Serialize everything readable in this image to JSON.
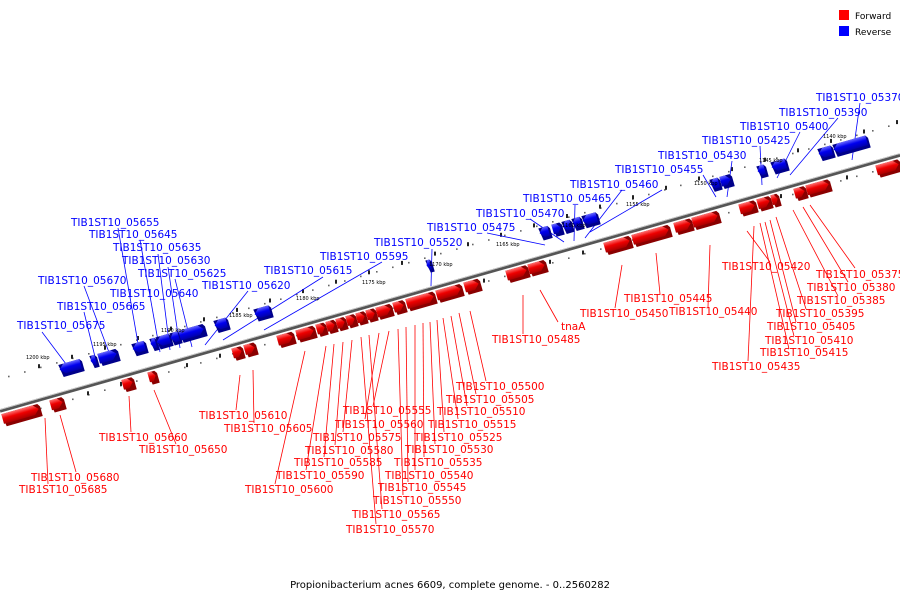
{
  "colors": {
    "forward": "#ff0000",
    "reverse": "#0000ff",
    "backbone": "#555555"
  },
  "legend": {
    "forward": "Forward",
    "reverse": "Reverse"
  },
  "caption": "Propionibacterium acnes 6609, complete genome. - 0..2560282",
  "scale_ticks": [
    "1140 kbp",
    "1145 kbp",
    "1150 kbp",
    "1155 kbp",
    "1160 kbp",
    "1165 kbp",
    "1170 kbp",
    "1175 kbp",
    "1180 kbp",
    "1185 kbp",
    "1190 kbp",
    "1195 kbp",
    "1200 kbp"
  ],
  "reverse_labels": [
    "TIB1ST10_05370",
    "TIB1ST10_05390",
    "TIB1ST10_05400",
    "TIB1ST10_05425",
    "TIB1ST10_05430",
    "TIB1ST10_05455",
    "TIB1ST10_05460",
    "TIB1ST10_05465",
    "TIB1ST10_05470",
    "TIB1ST10_05475",
    "TIB1ST10_05520",
    "TIB1ST10_05595",
    "TIB1ST10_05615",
    "TIB1ST10_05620",
    "TIB1ST10_05625",
    "TIB1ST10_05630",
    "TIB1ST10_05635",
    "TIB1ST10_05645",
    "TIB1ST10_05655",
    "TIB1ST10_05670",
    "TIB1ST10_05640",
    "TIB1ST10_05665",
    "TIB1ST10_05675"
  ],
  "forward_labels": [
    "TIB1ST10_05420",
    "TIB1ST10_05375",
    "TIB1ST10_05380",
    "TIB1ST10_05385",
    "TIB1ST10_05395",
    "TIB1ST10_05405",
    "TIB1ST10_05410",
    "TIB1ST10_05415",
    "TIB1ST10_05435",
    "TIB1ST10_05445",
    "TIB1ST10_05440",
    "TIB1ST10_05450",
    "tnaA",
    "TIB1ST10_05485",
    "TIB1ST10_05500",
    "TIB1ST10_05505",
    "TIB1ST10_05510",
    "TIB1ST10_05515",
    "TIB1ST10_05525",
    "TIB1ST10_05530",
    "TIB1ST10_05535",
    "TIB1ST10_05540",
    "TIB1ST10_05545",
    "TIB1ST10_05550",
    "TIB1ST10_05555",
    "TIB1ST10_05560",
    "TIB1ST10_05565",
    "TIB1ST10_05570",
    "TIB1ST10_05575",
    "TIB1ST10_05580",
    "TIB1ST10_05585",
    "TIB1ST10_05590",
    "TIB1ST10_05600",
    "TIB1ST10_05605",
    "TIB1ST10_05610",
    "TIB1ST10_05650",
    "TIB1ST10_05660",
    "TIB1ST10_05680",
    "TIB1ST10_05685"
  ]
}
